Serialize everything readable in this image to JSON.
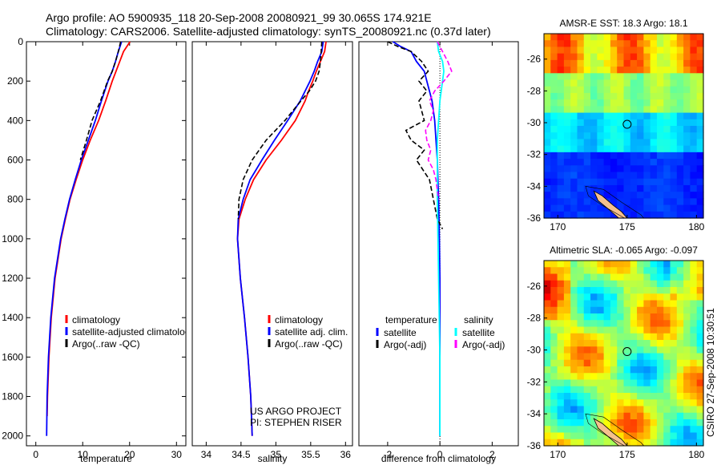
{
  "header": {
    "line1": "Argo profile: AO 5900935_118 20-Sep-2008 20080921_99 30.065S 174.921E",
    "line2": "Climatology: CARS2006. Satellite-adjusted climatology: synTS_20080921.nc (0.37d later)"
  },
  "side_label": "CSIRO 27-Sep-2008 10:30:51",
  "colors": {
    "climatology": "#ff0000",
    "satellite": "#0000ff",
    "argo": "#000000",
    "diff_salinity_satellite": "#00ffff",
    "diff_salinity_argo": "#ff00ff"
  },
  "chart_data": [
    {
      "type": "line",
      "xlabel": "temperature",
      "ylabel": "",
      "xlim": [
        -2,
        32
      ],
      "ylim": [
        2050,
        0
      ],
      "xticks": [
        0,
        10,
        20,
        30
      ],
      "yticks": [
        0,
        200,
        400,
        600,
        800,
        1000,
        1200,
        1400,
        1600,
        1800,
        2000
      ],
      "legend": [
        "climatology",
        "satellite-adjusted climatology",
        "Argo(..raw -QC)"
      ],
      "legend_position": "lower-center",
      "series": [
        {
          "name": "climatology",
          "style": "solid",
          "color": "#ff0000",
          "y": [
            0,
            50,
            100,
            150,
            200,
            300,
            400,
            500,
            600,
            700,
            800,
            900,
            1000,
            1200,
            1400,
            1600,
            1800,
            1900
          ],
          "x": [
            20.1,
            18.7,
            17.9,
            17.1,
            16.3,
            14.9,
            13.4,
            11.6,
            10.0,
            8.6,
            7.3,
            6.3,
            5.4,
            4.1,
            3.3,
            2.8,
            2.5,
            2.4
          ]
        },
        {
          "name": "satellite-adjusted climatology",
          "style": "solid",
          "color": "#0000ff",
          "y": [
            0,
            50,
            100,
            150,
            200,
            300,
            400,
            500,
            600,
            700,
            800,
            900,
            1000,
            1200,
            1400,
            1600,
            1800,
            2000
          ],
          "x": [
            18.3,
            17.6,
            17.0,
            16.3,
            15.4,
            14.0,
            12.7,
            11.2,
            9.7,
            8.4,
            7.2,
            6.2,
            5.3,
            4.0,
            3.2,
            2.7,
            2.4,
            2.3
          ]
        },
        {
          "name": "Argo(..raw -QC)",
          "style": "dashed",
          "color": "#000000",
          "y": [
            0,
            50,
            100,
            150,
            200,
            300,
            400,
            500,
            600
          ],
          "x": [
            18.1,
            17.6,
            17.0,
            16.3,
            15.3,
            13.8,
            12.0,
            10.8,
            9.5
          ]
        }
      ]
    },
    {
      "type": "line",
      "xlabel": "salinity",
      "ylabel": "",
      "xlim": [
        33.8,
        36.1
      ],
      "ylim": [
        2050,
        0
      ],
      "xticks": [
        34,
        34.5,
        35,
        35.5,
        36
      ],
      "yticks": [],
      "legend": [
        "climatology",
        "satellite adj. clim.",
        "Argo(..raw -QC)"
      ],
      "legend_position": "lower-right",
      "annotation": [
        "US ARGO PROJECT",
        "PI: STEPHEN RISER"
      ],
      "series": [
        {
          "name": "climatology",
          "style": "solid",
          "color": "#ff0000",
          "y": [
            0,
            50,
            100,
            150,
            200,
            250,
            300,
            400,
            500,
            600,
            700,
            800,
            900,
            1000,
            1200,
            1400,
            1600,
            1800,
            2000
          ],
          "x": [
            35.72,
            35.7,
            35.64,
            35.58,
            35.53,
            35.47,
            35.42,
            35.28,
            35.08,
            34.86,
            34.68,
            34.56,
            34.47,
            34.45,
            34.49,
            34.55,
            34.6,
            34.64,
            34.66
          ]
        },
        {
          "name": "satellite adj. clim.",
          "style": "solid",
          "color": "#0000ff",
          "y": [
            0,
            50,
            100,
            150,
            200,
            250,
            300,
            400,
            500,
            600,
            700,
            800,
            900,
            1000,
            1200,
            1400,
            1600,
            1800,
            2000
          ],
          "x": [
            35.68,
            35.66,
            35.6,
            35.55,
            35.49,
            35.42,
            35.35,
            35.17,
            34.98,
            34.8,
            34.63,
            34.53,
            34.46,
            34.45,
            34.49,
            34.55,
            34.6,
            34.64,
            34.66
          ]
        },
        {
          "name": "Argo(..raw -QC)",
          "style": "dashed",
          "color": "#000000",
          "y": [
            0,
            50,
            100,
            150,
            200,
            250,
            300,
            400,
            500,
            600,
            700,
            800,
            900
          ],
          "x": [
            35.66,
            35.65,
            35.64,
            35.62,
            35.57,
            35.48,
            35.36,
            35.13,
            34.86,
            34.66,
            34.53,
            34.47,
            34.46
          ]
        }
      ]
    },
    {
      "type": "line",
      "xlabel": "difference from climatology",
      "ylabel": "",
      "xlim": [
        -3.1,
        3.0
      ],
      "ylim": [
        2050,
        0
      ],
      "xticks": [
        -2,
        0,
        2
      ],
      "yticks": [],
      "zero_line": "dotted",
      "legend_groups": [
        {
          "title": "temperature",
          "entries": [
            "satellite",
            "Argo(-adj)"
          ]
        },
        {
          "title": "salinity",
          "entries": [
            "satellite",
            "Argo(-adj)"
          ]
        }
      ],
      "legend_position": "lower-center",
      "series": [
        {
          "name": "satellite",
          "group": "temperature",
          "style": "solid",
          "color": "#0000ff",
          "y": [
            0,
            25,
            50,
            100,
            150,
            200,
            300,
            400,
            600,
            800,
            1000,
            1200,
            1600,
            2000
          ],
          "x": [
            -1.8,
            -1.5,
            -1.1,
            -0.9,
            -0.6,
            -0.5,
            -0.3,
            -0.2,
            -0.1,
            -0.05,
            -0.02,
            0.0,
            0.0,
            0.0
          ]
        },
        {
          "name": "Argo(-adj)",
          "group": "temperature",
          "style": "dashed",
          "color": "#000000",
          "y": [
            0,
            25,
            50,
            100,
            150,
            200,
            250,
            300,
            400,
            450,
            500,
            550,
            600,
            700,
            800,
            900,
            950
          ],
          "x": [
            -2.0,
            -1.6,
            -1.1,
            -0.7,
            -0.45,
            -0.8,
            -0.5,
            -0.8,
            -0.6,
            -1.3,
            -1.1,
            -0.6,
            -0.9,
            -0.4,
            -0.25,
            -0.1,
            0.1
          ]
        },
        {
          "name": "satellite",
          "group": "salinity",
          "style": "solid",
          "color": "#00ffff",
          "y": [
            0,
            50,
            100,
            150,
            200,
            300,
            500,
            800,
            1200,
            1600,
            2000
          ],
          "x": [
            -0.1,
            -0.05,
            0.1,
            0.15,
            0.1,
            0.0,
            -0.1,
            -0.1,
            -0.05,
            0.0,
            0.0
          ]
        },
        {
          "name": "Argo(-adj)",
          "group": "salinity",
          "style": "dashed",
          "color": "#ff00ff",
          "y": [
            0,
            100,
            150,
            200,
            250,
            300,
            350,
            400,
            450,
            500,
            550,
            600,
            650,
            700,
            800
          ],
          "x": [
            -0.1,
            0.3,
            0.45,
            0.15,
            -0.2,
            -0.4,
            -0.25,
            -0.35,
            -0.55,
            -0.5,
            -0.35,
            -0.45,
            -0.25,
            -0.15,
            -0.05
          ]
        }
      ]
    },
    {
      "type": "heatmap",
      "title": "AMSR-E SST: 18.3 Argo: 18.1",
      "xlim": [
        169,
        180.5
      ],
      "ylim": [
        -36,
        -24.4
      ],
      "xticks": [
        170,
        175,
        180
      ],
      "yticks": [
        -26,
        -28,
        -30,
        -32,
        -34,
        -36
      ],
      "marker": {
        "lon": 175.0,
        "lat": -30.1
      },
      "colormap": "jet"
    },
    {
      "type": "heatmap",
      "title": "Altimetric SLA: -0.065 Argo: -0.097",
      "xlim": [
        169,
        180.5
      ],
      "ylim": [
        -36,
        -24.4
      ],
      "xticks": [
        170,
        175,
        180
      ],
      "yticks": [
        -26,
        -28,
        -30,
        -32,
        -34,
        -36
      ],
      "marker": {
        "lon": 175.0,
        "lat": -30.1
      },
      "colormap": "jet"
    }
  ]
}
